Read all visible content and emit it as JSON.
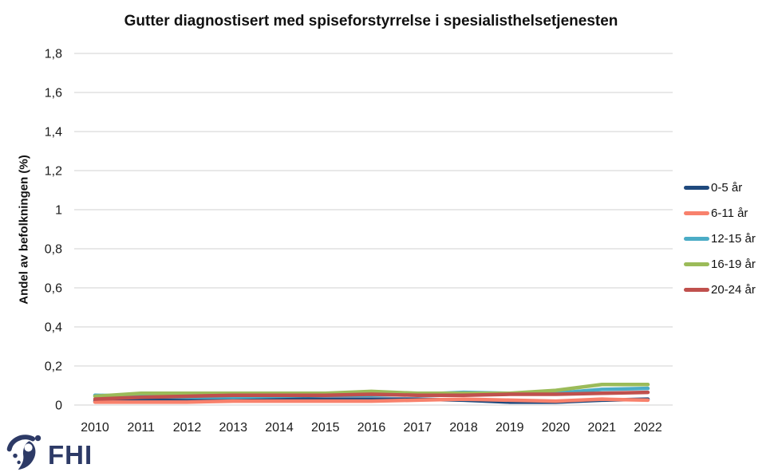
{
  "page": {
    "background": "#ffffff"
  },
  "chart_data": {
    "type": "line",
    "title": "Gutter diagnostisert med spiseforstyrrelse i spesialisthelsetjenesten",
    "xlabel": "",
    "ylabel": "Andel av befolkningen (%)",
    "x": [
      2010,
      2011,
      2012,
      2013,
      2014,
      2015,
      2016,
      2017,
      2018,
      2019,
      2020,
      2021,
      2022
    ],
    "y_ticks": [
      {
        "label": "1,8",
        "value": 1.8
      },
      {
        "label": "1,6",
        "value": 1.6
      },
      {
        "label": "1,4",
        "value": 1.4
      },
      {
        "label": "1,2",
        "value": 1.2
      },
      {
        "label": "1",
        "value": 1.0
      },
      {
        "label": "0,8",
        "value": 0.8
      },
      {
        "label": "0,6",
        "value": 0.6
      },
      {
        "label": "0,4",
        "value": 0.4
      },
      {
        "label": "0,2",
        "value": 0.2
      },
      {
        "label": "0",
        "value": 0.0
      }
    ],
    "ylim": [
      0,
      1.8
    ],
    "grid": true,
    "legend_position": "right",
    "series": [
      {
        "name": "0-5 år",
        "color": "#1F497D",
        "values": [
          0.02,
          0.025,
          0.03,
          0.03,
          0.03,
          0.03,
          0.03,
          0.03,
          0.025,
          0.015,
          0.015,
          0.025,
          0.03
        ]
      },
      {
        "name": "6-11 år",
        "color": "#F8816C",
        "values": [
          0.015,
          0.015,
          0.015,
          0.02,
          0.02,
          0.02,
          0.02,
          0.025,
          0.03,
          0.025,
          0.02,
          0.03,
          0.025
        ]
      },
      {
        "name": "12-15 år",
        "color": "#4BACC6",
        "values": [
          0.05,
          0.045,
          0.04,
          0.04,
          0.045,
          0.05,
          0.05,
          0.055,
          0.065,
          0.06,
          0.06,
          0.08,
          0.085
        ]
      },
      {
        "name": "16-19 år",
        "color": "#9BBB59",
        "values": [
          0.045,
          0.06,
          0.06,
          0.06,
          0.06,
          0.06,
          0.07,
          0.06,
          0.06,
          0.06,
          0.075,
          0.105,
          0.105
        ]
      },
      {
        "name": "20-24 år",
        "color": "#C0504D",
        "values": [
          0.03,
          0.04,
          0.045,
          0.05,
          0.05,
          0.05,
          0.055,
          0.05,
          0.05,
          0.055,
          0.055,
          0.06,
          0.065
        ]
      }
    ]
  },
  "footer": {
    "logo_text": "FHI"
  },
  "colors": {
    "gridline": "#d9d9d9",
    "axis_text": "#1a1a1a",
    "logo": "#2d3a66"
  }
}
